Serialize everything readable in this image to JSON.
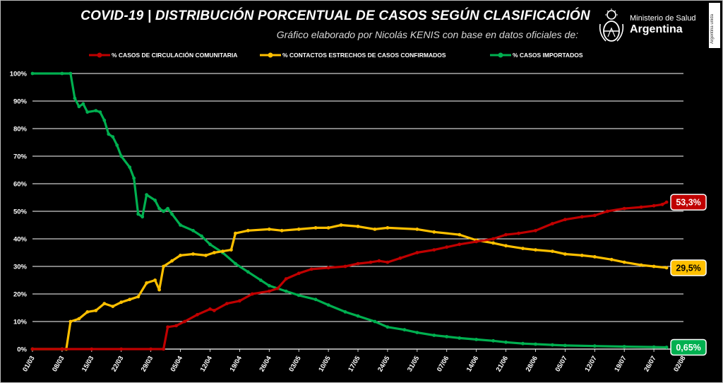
{
  "title": "COVID-19  |  DISTRIBUCIÓN PORCENTUAL DE CASOS SEGÚN CLASIFICACIÓN",
  "subtitle": "Gráfico elaborado por Nicolás KENIS con base en datos oficiales de:",
  "logo": {
    "line1": "Ministerio de Salud",
    "line2": "Argentina",
    "icon": "coat-of-arms-icon",
    "side_badge": "Argentina unida"
  },
  "colors": {
    "red": "#c00000",
    "yellow": "#ffc000",
    "green": "#00b050",
    "grid": "#ffffff",
    "background": "#000000"
  },
  "chart_data": {
    "type": "line",
    "title": "COVID-19  |  DISTRIBUCIÓN PORCENTUAL DE CASOS SEGÚN CLASIFICACIÓN",
    "xlabel": "",
    "ylabel": "",
    "x_range": [
      "01/03",
      "02/08"
    ],
    "ylim": [
      0,
      100
    ],
    "grid": true,
    "legend_position": "top",
    "x_ticks": [
      "01/03",
      "08/03",
      "15/03",
      "22/03",
      "29/03",
      "05/04",
      "12/04",
      "19/04",
      "26/04",
      "03/05",
      "10/05",
      "17/05",
      "24/05",
      "31/05",
      "07/06",
      "14/06",
      "21/06",
      "28/06",
      "05/07",
      "12/07",
      "19/07",
      "26/07",
      "02/08"
    ],
    "y_ticks": [
      "0%",
      "10%",
      "20%",
      "30%",
      "40%",
      "50%",
      "60%",
      "70%",
      "80%",
      "90%",
      "100%"
    ],
    "series": [
      {
        "name": "% CASOS DE CIRCULACIÓN COMUNITARIA",
        "color": "#c00000",
        "end_label": "53,3%",
        "points": [
          [
            "01/03",
            0
          ],
          [
            "08/03",
            0
          ],
          [
            "15/03",
            0
          ],
          [
            "22/03",
            0
          ],
          [
            "29/03",
            0
          ],
          [
            "01/04",
            0
          ],
          [
            "02/04",
            8
          ],
          [
            "04/04",
            8.5
          ],
          [
            "06/04",
            10
          ],
          [
            "09/04",
            12.5
          ],
          [
            "12/04",
            14.5
          ],
          [
            "13/04",
            14
          ],
          [
            "16/04",
            16.5
          ],
          [
            "19/04",
            17.5
          ],
          [
            "22/04",
            20
          ],
          [
            "26/04",
            21
          ],
          [
            "28/04",
            22
          ],
          [
            "30/04",
            25.5
          ],
          [
            "03/05",
            27.5
          ],
          [
            "06/05",
            29
          ],
          [
            "10/05",
            29.5
          ],
          [
            "14/05",
            30
          ],
          [
            "17/05",
            31
          ],
          [
            "20/05",
            31.5
          ],
          [
            "22/05",
            32
          ],
          [
            "24/05",
            31.5
          ],
          [
            "27/05",
            33
          ],
          [
            "31/05",
            35
          ],
          [
            "04/06",
            36
          ],
          [
            "07/06",
            37
          ],
          [
            "10/06",
            38
          ],
          [
            "14/06",
            39
          ],
          [
            "18/06",
            40
          ],
          [
            "21/06",
            41.5
          ],
          [
            "24/06",
            42
          ],
          [
            "28/06",
            43
          ],
          [
            "02/07",
            45.5
          ],
          [
            "05/07",
            47
          ],
          [
            "09/07",
            48
          ],
          [
            "12/07",
            48.5
          ],
          [
            "15/07",
            50
          ],
          [
            "19/07",
            51
          ],
          [
            "23/07",
            51.5
          ],
          [
            "26/07",
            52
          ],
          [
            "28/07",
            52.5
          ],
          [
            "29/07",
            53.3
          ]
        ]
      },
      {
        "name": "% CONTACTOS ESTRECHOS DE CASOS CONFIRMADOS",
        "color": "#ffc000",
        "end_label": "29,5%",
        "points": [
          [
            "01/03",
            0
          ],
          [
            "08/03",
            0
          ],
          [
            "09/03",
            0
          ],
          [
            "10/03",
            10
          ],
          [
            "12/03",
            11
          ],
          [
            "14/03",
            13.5
          ],
          [
            "16/03",
            14
          ],
          [
            "18/03",
            16.5
          ],
          [
            "20/03",
            15.5
          ],
          [
            "22/03",
            17
          ],
          [
            "24/03",
            18
          ],
          [
            "26/03",
            19
          ],
          [
            "28/03",
            24
          ],
          [
            "30/03",
            25
          ],
          [
            "31/03",
            21.5
          ],
          [
            "01/04",
            30
          ],
          [
            "03/04",
            32
          ],
          [
            "05/04",
            34
          ],
          [
            "08/04",
            34.5
          ],
          [
            "11/04",
            34
          ],
          [
            "13/04",
            35
          ],
          [
            "15/04",
            35.5
          ],
          [
            "17/04",
            36
          ],
          [
            "18/04",
            42
          ],
          [
            "21/04",
            43
          ],
          [
            "26/04",
            43.5
          ],
          [
            "29/04",
            43
          ],
          [
            "03/05",
            43.5
          ],
          [
            "07/05",
            44
          ],
          [
            "10/05",
            44
          ],
          [
            "13/05",
            45
          ],
          [
            "17/05",
            44.5
          ],
          [
            "21/05",
            43.5
          ],
          [
            "24/05",
            44
          ],
          [
            "31/05",
            43.5
          ],
          [
            "04/06",
            42.5
          ],
          [
            "10/06",
            41.5
          ],
          [
            "14/06",
            39.5
          ],
          [
            "18/06",
            38.5
          ],
          [
            "21/06",
            37.5
          ],
          [
            "25/06",
            36.5
          ],
          [
            "28/06",
            36
          ],
          [
            "02/07",
            35.5
          ],
          [
            "05/07",
            34.5
          ],
          [
            "09/07",
            34
          ],
          [
            "12/07",
            33.5
          ],
          [
            "16/07",
            32.5
          ],
          [
            "19/07",
            31.5
          ],
          [
            "23/07",
            30.5
          ],
          [
            "26/07",
            30
          ],
          [
            "29/07",
            29.5
          ]
        ]
      },
      {
        "name": "% CASOS IMPORTADOS",
        "color": "#00b050",
        "end_label": "0,65%",
        "points": [
          [
            "01/03",
            100
          ],
          [
            "08/03",
            100
          ],
          [
            "10/03",
            100
          ],
          [
            "11/03",
            91
          ],
          [
            "12/03",
            88
          ],
          [
            "13/03",
            89
          ],
          [
            "14/03",
            86
          ],
          [
            "16/03",
            86.5
          ],
          [
            "17/03",
            86
          ],
          [
            "18/03",
            83
          ],
          [
            "19/03",
            78
          ],
          [
            "20/03",
            77
          ],
          [
            "21/03",
            74
          ],
          [
            "22/03",
            70
          ],
          [
            "24/03",
            66
          ],
          [
            "25/03",
            62
          ],
          [
            "26/03",
            49
          ],
          [
            "27/03",
            48
          ],
          [
            "28/03",
            56
          ],
          [
            "30/03",
            54
          ],
          [
            "31/03",
            51
          ],
          [
            "01/04",
            50
          ],
          [
            "02/04",
            51
          ],
          [
            "03/04",
            49
          ],
          [
            "05/04",
            45
          ],
          [
            "08/04",
            43
          ],
          [
            "10/04",
            41
          ],
          [
            "12/04",
            38
          ],
          [
            "15/04",
            35
          ],
          [
            "18/04",
            31
          ],
          [
            "21/04",
            28
          ],
          [
            "24/04",
            25
          ],
          [
            "26/04",
            23
          ],
          [
            "30/04",
            21
          ],
          [
            "03/05",
            19.5
          ],
          [
            "07/05",
            18
          ],
          [
            "10/05",
            16
          ],
          [
            "14/05",
            13.5
          ],
          [
            "17/05",
            12
          ],
          [
            "21/05",
            10
          ],
          [
            "24/05",
            8
          ],
          [
            "28/05",
            7
          ],
          [
            "31/05",
            6
          ],
          [
            "04/06",
            5
          ],
          [
            "07/06",
            4.5
          ],
          [
            "10/06",
            4
          ],
          [
            "14/06",
            3.5
          ],
          [
            "18/06",
            3
          ],
          [
            "21/06",
            2.5
          ],
          [
            "25/06",
            2
          ],
          [
            "28/06",
            1.8
          ],
          [
            "02/07",
            1.5
          ],
          [
            "05/07",
            1.3
          ],
          [
            "12/07",
            1.1
          ],
          [
            "19/07",
            0.9
          ],
          [
            "26/07",
            0.75
          ],
          [
            "29/07",
            0.65
          ]
        ]
      }
    ]
  }
}
